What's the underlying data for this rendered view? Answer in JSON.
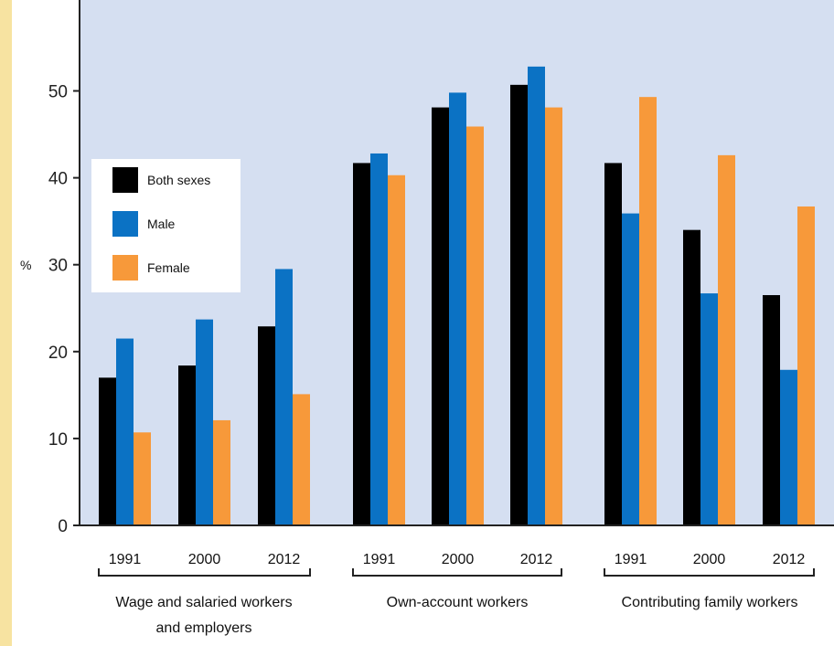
{
  "chart_data": {
    "type": "bar",
    "ylabel": "%",
    "ylim": [
      0,
      55
    ],
    "yticks": [
      0,
      10,
      20,
      30,
      40,
      50
    ],
    "grid": false,
    "legend_position": "top-left",
    "groups": [
      {
        "label_lines": [
          "Wage and salaried workers",
          "and employers"
        ],
        "years": [
          "1991",
          "2000",
          "2012"
        ]
      },
      {
        "label_lines": [
          "Own-account workers"
        ],
        "years": [
          "1991",
          "2000",
          "2012"
        ]
      },
      {
        "label_lines": [
          "Contributing family workers"
        ],
        "years": [
          "1991",
          "2000",
          "2012"
        ]
      }
    ],
    "series": [
      {
        "name": "Both sexes",
        "color": "#000000",
        "values": [
          17.0,
          18.4,
          22.9,
          41.7,
          48.1,
          50.7,
          41.7,
          34.0,
          26.5
        ]
      },
      {
        "name": "Male",
        "color": "#0b72c4",
        "values": [
          21.5,
          23.7,
          29.5,
          42.8,
          49.8,
          52.8,
          35.9,
          26.7,
          17.9
        ]
      },
      {
        "name": "Female",
        "color": "#f7993a",
        "values": [
          10.7,
          12.1,
          15.1,
          40.3,
          45.9,
          48.1,
          49.3,
          42.6,
          36.7
        ]
      }
    ]
  },
  "colors": {
    "plot_background": "#d5dff1",
    "left_strip": "#f7e3a1"
  }
}
